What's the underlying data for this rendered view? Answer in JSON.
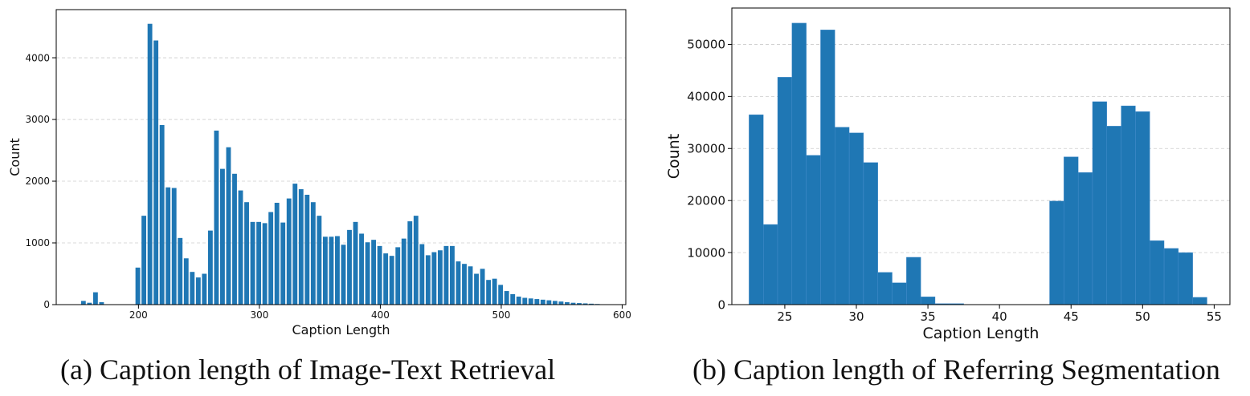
{
  "captions": {
    "a": "(a) Caption length of Image-Text Retrieval",
    "b": "(b) Caption length of Referring Segmentation"
  },
  "colors": {
    "bar": "#1f77b4",
    "grid": "#cccccc",
    "axis": "#000000"
  },
  "chart_data": [
    {
      "type": "bar",
      "title": "",
      "xlabel": "Caption Length",
      "ylabel": "Count",
      "xlim": [
        132,
        603
      ],
      "ylim": [
        0,
        4780
      ],
      "bin_width": 4.95,
      "xticks": [
        200,
        300,
        400,
        500,
        600
      ],
      "yticks": [
        0,
        1000,
        2000,
        3000,
        4000
      ],
      "grid": "y-dashed",
      "bins_start": [
        152,
        157,
        162,
        167,
        172,
        177,
        182,
        187,
        192,
        197,
        202,
        207,
        212,
        217,
        222,
        227,
        232,
        237,
        242,
        247,
        252,
        257,
        262,
        267,
        272,
        277,
        282,
        287,
        292,
        297,
        302,
        307,
        312,
        317,
        322,
        327,
        332,
        337,
        342,
        347,
        352,
        357,
        362,
        367,
        372,
        377,
        382,
        387,
        392,
        397,
        402,
        407,
        412,
        417,
        422,
        427,
        432,
        437,
        442,
        447,
        452,
        457,
        462,
        467,
        472,
        477,
        482,
        487,
        492,
        497,
        502,
        507,
        512,
        517,
        522,
        527,
        532,
        537,
        542,
        547,
        552,
        557,
        562,
        567,
        572,
        577,
        582
      ],
      "values": [
        60,
        30,
        200,
        40,
        0,
        0,
        0,
        0,
        0,
        600,
        1440,
        4550,
        4280,
        2910,
        1900,
        1890,
        1080,
        750,
        530,
        440,
        500,
        1200,
        2820,
        2200,
        2550,
        2120,
        1850,
        1660,
        1340,
        1340,
        1320,
        1500,
        1650,
        1330,
        1720,
        1960,
        1870,
        1780,
        1660,
        1440,
        1100,
        1100,
        1110,
        970,
        1210,
        1340,
        1150,
        1010,
        1050,
        950,
        830,
        790,
        930,
        1070,
        1350,
        1440,
        980,
        800,
        850,
        880,
        950,
        950,
        700,
        660,
        620,
        500,
        580,
        400,
        420,
        320,
        220,
        170,
        130,
        110,
        100,
        90,
        80,
        70,
        60,
        50,
        40,
        30,
        25,
        20,
        15,
        10,
        5
      ]
    },
    {
      "type": "bar",
      "title": "",
      "xlabel": "Caption Length",
      "ylabel": "Count",
      "xlim": [
        21.3,
        56.1
      ],
      "ylim": [
        0,
        57000
      ],
      "bin_width": 1.0,
      "xticks": [
        25,
        30,
        35,
        40,
        45,
        50,
        55
      ],
      "yticks": [
        0,
        10000,
        20000,
        30000,
        40000,
        50000
      ],
      "grid": "y-dashed",
      "bins_start": [
        22.5,
        23.5,
        24.5,
        25.5,
        26.5,
        27.5,
        28.5,
        29.5,
        30.5,
        31.5,
        32.5,
        33.5,
        34.5,
        35.5,
        36.5,
        37.5,
        38.5,
        39.5,
        40.5,
        41.5,
        42.5,
        43.5,
        44.5,
        45.5,
        46.5,
        47.5,
        48.5,
        49.5,
        50.5,
        51.5,
        52.5,
        53.5
      ],
      "values": [
        36500,
        15400,
        43700,
        54100,
        28700,
        52800,
        34100,
        33000,
        27300,
        6200,
        4200,
        9100,
        1500,
        200,
        200,
        0,
        0,
        0,
        0,
        0,
        0,
        19900,
        28400,
        25400,
        39000,
        34300,
        38200,
        37100,
        12300,
        10800,
        10000,
        1400
      ]
    }
  ]
}
